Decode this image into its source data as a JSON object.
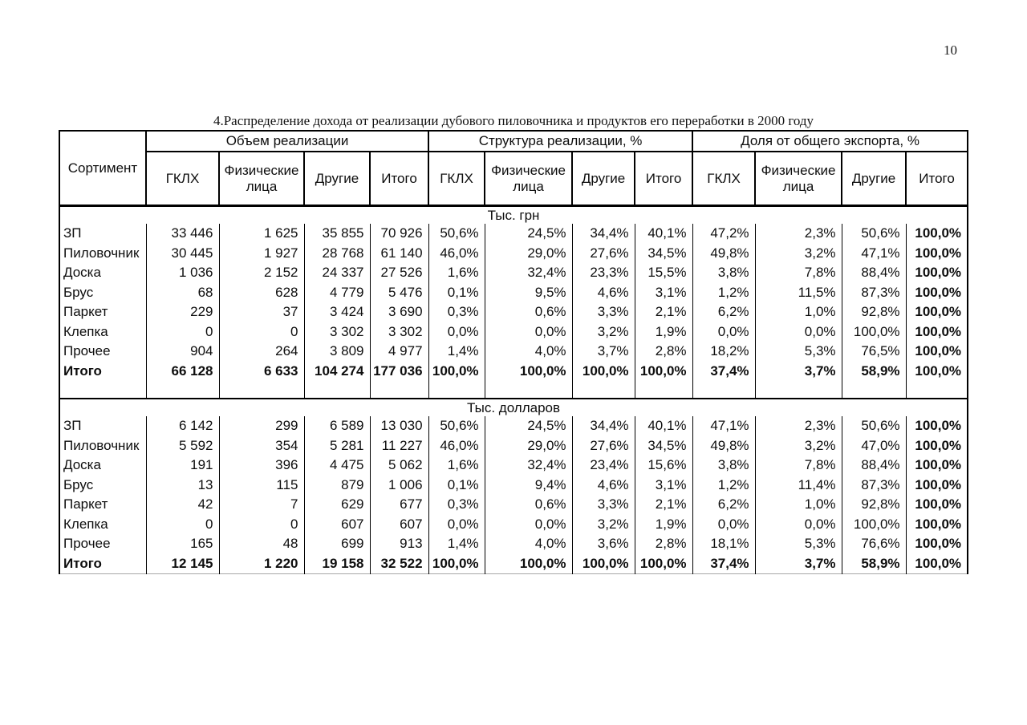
{
  "page_number": "10",
  "title": "4.Распределение дохода от реализации дубового пиловочника и продуктов его переработки в  2000 году",
  "table": {
    "row_header": "Сортимент",
    "groups": [
      {
        "label": "Объем реализации"
      },
      {
        "label": "Структура реализации, %"
      },
      {
        "label": "Доля от общего экспорта, %"
      }
    ],
    "subcolumns": [
      "ГКЛХ",
      "Физические лица",
      "Другие",
      "Итого"
    ],
    "sections": [
      {
        "label": "Тыс. грн",
        "rows": [
          {
            "name": "ЗП",
            "bold": false,
            "values": [
              "33 446",
              "1 625",
              "35 855",
              "70 926",
              "50,6%",
              "24,5%",
              "34,4%",
              "40,1%",
              "47,2%",
              "2,3%",
              "50,6%",
              "100,0%"
            ]
          },
          {
            "name": "Пиловочник",
            "bold": false,
            "values": [
              "30 445",
              "1 927",
              "28 768",
              "61 140",
              "46,0%",
              "29,0%",
              "27,6%",
              "34,5%",
              "49,8%",
              "3,2%",
              "47,1%",
              "100,0%"
            ]
          },
          {
            "name": "Доска",
            "bold": false,
            "values": [
              "1 036",
              "2 152",
              "24 337",
              "27 526",
              "1,6%",
              "32,4%",
              "23,3%",
              "15,5%",
              "3,8%",
              "7,8%",
              "88,4%",
              "100,0%"
            ]
          },
          {
            "name": "Брус",
            "bold": false,
            "values": [
              "68",
              "628",
              "4 779",
              "5 476",
              "0,1%",
              "9,5%",
              "4,6%",
              "3,1%",
              "1,2%",
              "11,5%",
              "87,3%",
              "100,0%"
            ]
          },
          {
            "name": "Паркет",
            "bold": false,
            "values": [
              "229",
              "37",
              "3 424",
              "3 690",
              "0,3%",
              "0,6%",
              "3,3%",
              "2,1%",
              "6,2%",
              "1,0%",
              "92,8%",
              "100,0%"
            ]
          },
          {
            "name": "Клепка",
            "bold": false,
            "values": [
              "0",
              "0",
              "3 302",
              "3 302",
              "0,0%",
              "0,0%",
              "3,2%",
              "1,9%",
              "0,0%",
              "0,0%",
              "100,0%",
              "100,0%"
            ]
          },
          {
            "name": "Прочее",
            "bold": false,
            "values": [
              "904",
              "264",
              "3 809",
              "4 977",
              "1,4%",
              "4,0%",
              "3,7%",
              "2,8%",
              "18,2%",
              "5,3%",
              "76,5%",
              "100,0%"
            ]
          },
          {
            "name": "Итого",
            "bold": true,
            "values": [
              "66 128",
              "6 633",
              "104 274",
              "177 036",
              "100,0%",
              "100,0%",
              "100,0%",
              "100,0%",
              "37,4%",
              "3,7%",
              "58,9%",
              "100,0%"
            ]
          }
        ]
      },
      {
        "label": "Тыс. долларов",
        "rows": [
          {
            "name": "ЗП",
            "bold": false,
            "values": [
              "6 142",
              "299",
              "6 589",
              "13 030",
              "50,6%",
              "24,5%",
              "34,4%",
              "40,1%",
              "47,1%",
              "2,3%",
              "50,6%",
              "100,0%"
            ]
          },
          {
            "name": "Пиловочник",
            "bold": false,
            "values": [
              "5 592",
              "354",
              "5 281",
              "11 227",
              "46,0%",
              "29,0%",
              "27,6%",
              "34,5%",
              "49,8%",
              "3,2%",
              "47,0%",
              "100,0%"
            ]
          },
          {
            "name": "Доска",
            "bold": false,
            "values": [
              "191",
              "396",
              "4 475",
              "5 062",
              "1,6%",
              "32,4%",
              "23,4%",
              "15,6%",
              "3,8%",
              "7,8%",
              "88,4%",
              "100,0%"
            ]
          },
          {
            "name": "Брус",
            "bold": false,
            "values": [
              "13",
              "115",
              "879",
              "1 006",
              "0,1%",
              "9,4%",
              "4,6%",
              "3,1%",
              "1,2%",
              "11,4%",
              "87,3%",
              "100,0%"
            ]
          },
          {
            "name": "Паркет",
            "bold": false,
            "values": [
              "42",
              "7",
              "629",
              "677",
              "0,3%",
              "0,6%",
              "3,3%",
              "2,1%",
              "6,2%",
              "1,0%",
              "92,8%",
              "100,0%"
            ]
          },
          {
            "name": "Клепка",
            "bold": false,
            "values": [
              "0",
              "0",
              "607",
              "607",
              "0,0%",
              "0,0%",
              "3,2%",
              "1,9%",
              "0,0%",
              "0,0%",
              "100,0%",
              "100,0%"
            ]
          },
          {
            "name": "Прочее",
            "bold": false,
            "values": [
              "165",
              "48",
              "699",
              "913",
              "1,4%",
              "4,0%",
              "3,6%",
              "2,8%",
              "18,1%",
              "5,3%",
              "76,6%",
              "100,0%"
            ]
          },
          {
            "name": "Итого",
            "bold": true,
            "values": [
              "12 145",
              "1 220",
              "19 158",
              "32 522",
              "100,0%",
              "100,0%",
              "100,0%",
              "100,0%",
              "37,4%",
              "3,7%",
              "58,9%",
              "100,0%"
            ]
          }
        ]
      }
    ]
  }
}
